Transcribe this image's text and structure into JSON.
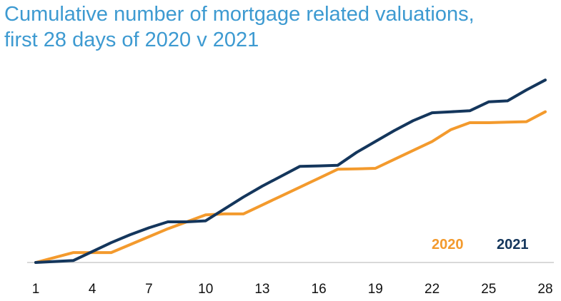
{
  "chart_data": {
    "type": "line",
    "title_line1": "Cumulative number of mortgage related valuations,",
    "title_line2": "first 28 days of 2020 v 2021",
    "xlabel": "",
    "ylabel": "",
    "x": [
      1,
      2,
      3,
      4,
      5,
      6,
      7,
      8,
      9,
      10,
      11,
      12,
      13,
      14,
      15,
      16,
      17,
      18,
      19,
      20,
      21,
      22,
      23,
      24,
      25,
      26,
      27,
      28
    ],
    "x_ticks": [
      1,
      4,
      7,
      10,
      13,
      16,
      19,
      22,
      25,
      28
    ],
    "ylim": [
      0,
      100
    ],
    "grid": false,
    "legend_position": "bottom-right",
    "series": [
      {
        "name": "2020",
        "color": "#f39a2d",
        "values": [
          0,
          2.5,
          5,
          5,
          5,
          9,
          13,
          17,
          20.5,
          24,
          24.5,
          24.5,
          29,
          33.5,
          38,
          42.5,
          47,
          47.2,
          47.5,
          52,
          56.5,
          61,
          67,
          70.5,
          70.5,
          70.8,
          71,
          76
        ]
      },
      {
        "name": "2021",
        "color": "#14365c",
        "values": [
          0,
          0.5,
          1,
          5.5,
          10,
          14,
          17.5,
          20.5,
          20.5,
          21,
          27,
          33,
          38.5,
          43.5,
          48.5,
          48.7,
          49,
          55.5,
          61,
          66.5,
          71.5,
          75.5,
          76,
          76.5,
          81,
          81.5,
          87,
          92
        ]
      }
    ]
  }
}
